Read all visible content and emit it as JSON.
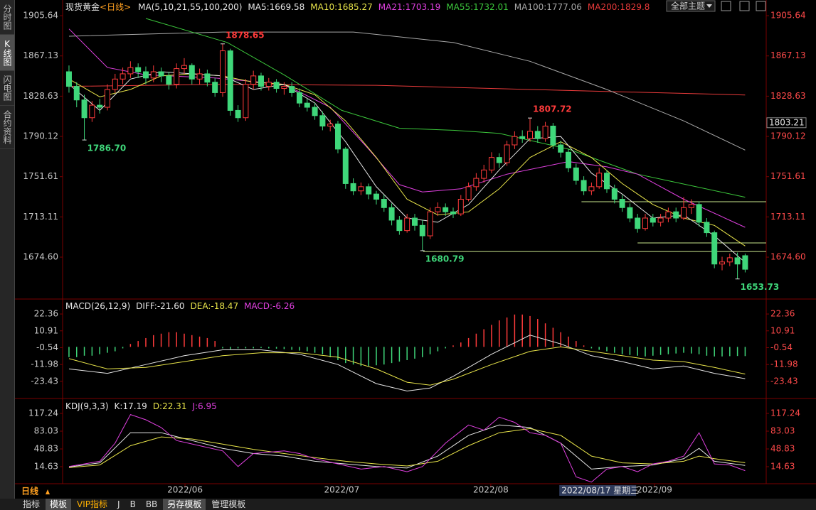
{
  "sidebar": {
    "tabs": [
      "分时图",
      "K线图",
      "闪电图",
      "合约资料"
    ],
    "selected": 1
  },
  "theme_menu": "全部主题",
  "chart_data": [
    {
      "type": "candlestick",
      "title": "现货黄金",
      "subtitle": "<日线>",
      "params": "MA(5,10,21,55,100,200)",
      "xlim": [
        -0.83,
        90.74
      ],
      "ylim": [
        1635.2,
        1915.2
      ],
      "yticks": [
        1905.64,
        1867.13,
        1828.63,
        1790.12,
        1751.61,
        1713.11,
        {
          "value": 1674.6,
          "label": "1674.60"
        }
      ],
      "up_color": "#ff3b3b",
      "down_color": "#3fd77a",
      "open": [
        1852,
        1838,
        1825,
        1808,
        1820,
        1818,
        1835,
        1845,
        1850,
        1856,
        1852,
        1846,
        1852,
        1848,
        1840,
        1855,
        1858,
        1845,
        1850,
        1842,
        1832,
        1872,
        1815,
        1808,
        1840,
        1848,
        1838,
        1842,
        1836,
        1838,
        1832,
        1822,
        1818,
        1810,
        1800,
        1802,
        1778,
        1745,
        1738,
        1742,
        1735,
        1730,
        1722,
        1710,
        1700,
        1712,
        1705,
        1695,
        1718,
        1722,
        1718,
        1716,
        1730,
        1742,
        1750,
        1758,
        1770,
        1765,
        1782,
        1790,
        1788,
        1795,
        1788,
        1800,
        1782,
        1775,
        1760,
        1748,
        1738,
        1742,
        1755,
        1740,
        1730,
        1722,
        1712,
        1702,
        1712,
        1708,
        1712,
        1718,
        1712,
        1722,
        1725,
        1708,
        1698,
        1668,
        1670,
        1674,
        1676
      ],
      "high": [
        1858,
        1842,
        1830,
        1824,
        1826,
        1840,
        1850,
        1856,
        1862,
        1860,
        1857,
        1858,
        1856,
        1852,
        1860,
        1865,
        1860,
        1855,
        1854,
        1846,
        1878.65,
        1874,
        1820,
        1845,
        1853,
        1851,
        1846,
        1845,
        1842,
        1842,
        1836,
        1826,
        1822,
        1814,
        1806,
        1805,
        1780,
        1750,
        1746,
        1745,
        1738,
        1734,
        1726,
        1714,
        1716,
        1716,
        1710,
        1722,
        1727,
        1726,
        1722,
        1734,
        1746,
        1755,
        1763,
        1775,
        1774,
        1786,
        1795,
        1796,
        1807.72,
        1800,
        1804,
        1803,
        1786,
        1778,
        1764,
        1752,
        1746,
        1760,
        1758,
        1744,
        1734,
        1726,
        1716,
        1716,
        1716,
        1716,
        1722,
        1722,
        1732,
        1730,
        1728,
        1712,
        1700,
        1675,
        1678,
        1679,
        1678
      ],
      "low": [
        1832,
        1818,
        1786.7,
        1804,
        1812,
        1815,
        1832,
        1840,
        1846,
        1846,
        1840,
        1842,
        1842,
        1835,
        1836,
        1850,
        1840,
        1840,
        1838,
        1828,
        1828,
        1810,
        1804,
        1805,
        1835,
        1834,
        1834,
        1832,
        1830,
        1828,
        1818,
        1814,
        1806,
        1796,
        1795,
        1774,
        1740,
        1734,
        1734,
        1730,
        1725,
        1718,
        1705,
        1696,
        1698,
        1700,
        1680.79,
        1692,
        1714,
        1714,
        1712,
        1714,
        1728,
        1738,
        1746,
        1755,
        1760,
        1762,
        1778,
        1784,
        1785,
        1784,
        1785,
        1778,
        1770,
        1756,
        1744,
        1734,
        1734,
        1740,
        1736,
        1726,
        1718,
        1708,
        1698,
        1700,
        1704,
        1704,
        1708,
        1708,
        1710,
        1716,
        1704,
        1694,
        1664,
        1662,
        1666,
        1653.73,
        1660
      ],
      "close": [
        1838,
        1825,
        1808,
        1820,
        1818,
        1835,
        1845,
        1850,
        1856,
        1852,
        1846,
        1852,
        1848,
        1840,
        1855,
        1858,
        1845,
        1850,
        1842,
        1832,
        1872,
        1815,
        1808,
        1840,
        1848,
        1838,
        1842,
        1836,
        1838,
        1832,
        1822,
        1818,
        1810,
        1800,
        1802,
        1778,
        1745,
        1738,
        1742,
        1735,
        1730,
        1722,
        1710,
        1700,
        1712,
        1705,
        1695,
        1718,
        1722,
        1718,
        1716,
        1730,
        1742,
        1750,
        1758,
        1770,
        1765,
        1782,
        1790,
        1788,
        1795,
        1788,
        1800,
        1782,
        1775,
        1760,
        1748,
        1738,
        1742,
        1755,
        1740,
        1730,
        1722,
        1712,
        1702,
        1712,
        1708,
        1712,
        1718,
        1712,
        1722,
        1725,
        1708,
        1698,
        1668,
        1670,
        1674,
        1668,
        1663
      ],
      "series": [
        {
          "label": "MA5:1669.58",
          "color": "#e6e6e6",
          "x": [
            0,
            4,
            8,
            12,
            16,
            20,
            24,
            28,
            32,
            36,
            40,
            44,
            48,
            52,
            56,
            60,
            64,
            68,
            72,
            76,
            80,
            84,
            88
          ],
          "values": [
            1840,
            1815,
            1845,
            1852,
            1850,
            1848,
            1835,
            1840,
            1822,
            1785,
            1742,
            1712,
            1708,
            1725,
            1758,
            1788,
            1790,
            1755,
            1735,
            1712,
            1715,
            1695,
            1669.58
          ]
        },
        {
          "label": "MA10:1685.27",
          "color": "#e8e44a",
          "x": [
            0,
            4,
            8,
            12,
            16,
            20,
            24,
            28,
            32,
            36,
            40,
            44,
            48,
            52,
            56,
            60,
            64,
            68,
            72,
            76,
            80,
            84,
            88
          ],
          "values": [
            1845,
            1828,
            1835,
            1848,
            1850,
            1848,
            1842,
            1840,
            1830,
            1805,
            1770,
            1730,
            1715,
            1718,
            1740,
            1770,
            1785,
            1770,
            1745,
            1725,
            1712,
            1705,
            1685.27
          ]
        },
        {
          "label": "MA21:1703.19",
          "color": "#e040e0",
          "x": [
            0,
            5,
            10,
            19,
            28,
            34,
            39,
            43,
            46,
            51,
            57,
            65,
            70,
            74,
            80,
            88
          ],
          "values": [
            1893,
            1856,
            1849,
            1846,
            1840,
            1818,
            1778,
            1744,
            1737,
            1740,
            1754,
            1766,
            1761,
            1754,
            1730,
            1703.19
          ]
        },
        {
          "label": "MA55:1732.01",
          "color": "#3cc83c",
          "x": [
            10,
            20.6,
            28,
            35.5,
            43,
            50,
            56,
            65,
            74,
            88
          ],
          "values": [
            1903,
            1880,
            1849,
            1815,
            1798,
            1796,
            1793,
            1778,
            1754,
            1732.01
          ]
        },
        {
          "label": "MA100:1777.06",
          "color": "#a8a8a8",
          "x": [
            0,
            20,
            37,
            50,
            60,
            70,
            80,
            88
          ],
          "values": [
            1886,
            1890,
            1890,
            1880,
            1862,
            1835,
            1805,
            1777.06
          ]
        },
        {
          "label": "MA200:1829.8",
          "color": "#e83a3a",
          "x": [
            0,
            20,
            40,
            60,
            88
          ],
          "values": [
            1838,
            1840,
            1839,
            1835,
            1829.8
          ]
        }
      ],
      "annotations": [
        {
          "label": "1878.65",
          "value": 1878.65,
          "index": 20
        },
        {
          "label": "1807.72",
          "value": 1807.72,
          "index": 60
        },
        {
          "label": "1786.70",
          "value": 1786.7,
          "index": 2
        },
        {
          "label": "1680.79",
          "value": 1680.79,
          "index": 46
        },
        {
          "label": "1653.73",
          "value": 1653.73,
          "index": 87
        }
      ],
      "level_color": "#c8e68c",
      "levels": [
        {
          "value": 1727.6,
          "x_start": 66.7
        },
        {
          "value": 1688.2,
          "x_start": 74
        },
        {
          "value": 1680,
          "x_start": 46.1
        }
      ],
      "last_price": 1803.21
    },
    {
      "type": "macd",
      "title": "MACD(26,12,9)",
      "xlim": [
        -0.83,
        90.74
      ],
      "ylim": [
        -34.6,
        30.6
      ],
      "yticks": [
        22.36,
        10.91,
        -0.54,
        -11.98,
        -23.43
      ],
      "up_color": "#ff3b3b",
      "down_color": "#3fd77a",
      "histogram": {
        "label": "MACD:-6.26",
        "color": "#e040e0",
        "values": [
          -7,
          -7,
          -6,
          -6,
          -5,
          -4,
          -3,
          -1,
          2,
          4,
          6,
          8,
          9,
          10,
          10,
          9,
          8,
          7,
          6,
          4,
          -1,
          -1.5,
          -1,
          -1,
          -1,
          -0.8,
          -1,
          -1.2,
          -1.5,
          -2,
          -2.5,
          -3,
          -4,
          -5,
          -7,
          -9,
          -11,
          -12,
          -13,
          -13,
          -12.5,
          -12,
          -11,
          -10,
          -9,
          -8,
          -7,
          -5,
          -3,
          -1,
          1,
          3,
          6,
          9,
          12,
          15,
          18,
          20,
          22,
          22,
          21,
          19,
          16,
          13,
          10,
          7,
          4,
          1,
          -1,
          -2,
          -3,
          -4,
          -5,
          -5.5,
          -6,
          -6.5,
          -6,
          -5.5,
          -5,
          -4.5,
          -4,
          -4.5,
          -5,
          -6,
          -6.5,
          -6.5,
          -6.3,
          -6.2,
          -6.26
        ]
      },
      "series": [
        {
          "label": "DIFF:-21.60",
          "color": "#e6e6e6",
          "x": [
            0,
            5,
            10,
            15,
            20,
            25,
            30,
            35,
            40,
            44,
            47,
            50,
            55,
            60,
            64,
            68,
            72,
            76,
            80,
            84,
            88
          ],
          "values": [
            -15,
            -18,
            -12,
            -6,
            -2,
            -2,
            -5,
            -12,
            -25,
            -30,
            -28,
            -20,
            -5,
            8,
            2,
            -6,
            -10,
            -15,
            -13,
            -18,
            -21.6
          ]
        },
        {
          "label": "DEA:-18.47",
          "color": "#e8e44a",
          "x": [
            0,
            5,
            10,
            15,
            20,
            25,
            30,
            35,
            40,
            44,
            47,
            50,
            55,
            60,
            64,
            68,
            72,
            76,
            80,
            84,
            88
          ],
          "values": [
            -8,
            -15,
            -14,
            -10,
            -6,
            -4,
            -4,
            -7,
            -15,
            -24,
            -26,
            -22,
            -12,
            -3,
            0,
            -3,
            -6,
            -9,
            -10,
            -14,
            -18.47
          ]
        }
      ]
    },
    {
      "type": "kdj",
      "title": "KDJ(9,3,3)",
      "xlim": [
        -0.83,
        90.74
      ],
      "ylim": [
        -16.8,
        140.5
      ],
      "yticks": [
        117.24,
        83.03,
        48.83,
        14.63
      ],
      "series": [
        {
          "label": "K:17.19",
          "color": "#e6e6e6",
          "x": [
            0,
            4,
            8,
            12,
            16,
            20,
            24,
            28,
            32,
            36,
            40,
            44,
            48,
            52,
            56,
            60,
            64,
            68,
            72,
            76,
            80,
            82,
            84,
            88
          ],
          "values": [
            14,
            22,
            80,
            80,
            65,
            50,
            40,
            35,
            25,
            20,
            15,
            12,
            35,
            75,
            95,
            90,
            60,
            10,
            15,
            18,
            30,
            50,
            25,
            17.19
          ]
        },
        {
          "label": "D:22.31",
          "color": "#e8e44a",
          "x": [
            0,
            4,
            8,
            12,
            16,
            20,
            24,
            28,
            32,
            36,
            40,
            44,
            48,
            52,
            56,
            60,
            64,
            68,
            72,
            76,
            80,
            82,
            84,
            88
          ],
          "values": [
            13,
            18,
            55,
            72,
            68,
            58,
            48,
            40,
            32,
            25,
            20,
            16,
            25,
            55,
            80,
            88,
            75,
            35,
            22,
            20,
            25,
            35,
            30,
            22.31
          ]
        },
        {
          "label": "J:6.95",
          "color": "#e040e0",
          "x": [
            0,
            4,
            6,
            8,
            10,
            12,
            14,
            17,
            20,
            22,
            24,
            28,
            30,
            32,
            35,
            38,
            41,
            44,
            46,
            49,
            52,
            54,
            56,
            58,
            60,
            62,
            64,
            66,
            68,
            70,
            72,
            74,
            76,
            78,
            80,
            82,
            84,
            86,
            88
          ],
          "values": [
            15,
            25,
            60,
            115,
            105,
            90,
            65,
            55,
            45,
            15,
            40,
            45,
            40,
            30,
            20,
            10,
            15,
            5,
            15,
            60,
            95,
            85,
            110,
            100,
            80,
            75,
            60,
            -5,
            -15,
            10,
            15,
            5,
            20,
            25,
            35,
            80,
            20,
            18,
            6.95
          ]
        }
      ],
      "xticks": [
        {
          "value": 15.1,
          "label": "2022/06"
        },
        {
          "value": 35.5,
          "label": "2022/07"
        },
        {
          "value": 54.9,
          "label": "2022/08"
        },
        {
          "value": 76.2,
          "label": "2022/09"
        }
      ],
      "cursor": {
        "value": 64,
        "label": "2022/08/17 星期三"
      }
    }
  ],
  "bottom_bar": {
    "period": "日线",
    "tabs": [
      "指标",
      "模板",
      "VIP指标",
      "J",
      "B",
      "BB",
      "另存模板",
      "管理模板"
    ],
    "highlighted": [
      1,
      6
    ],
    "vip": 2
  }
}
